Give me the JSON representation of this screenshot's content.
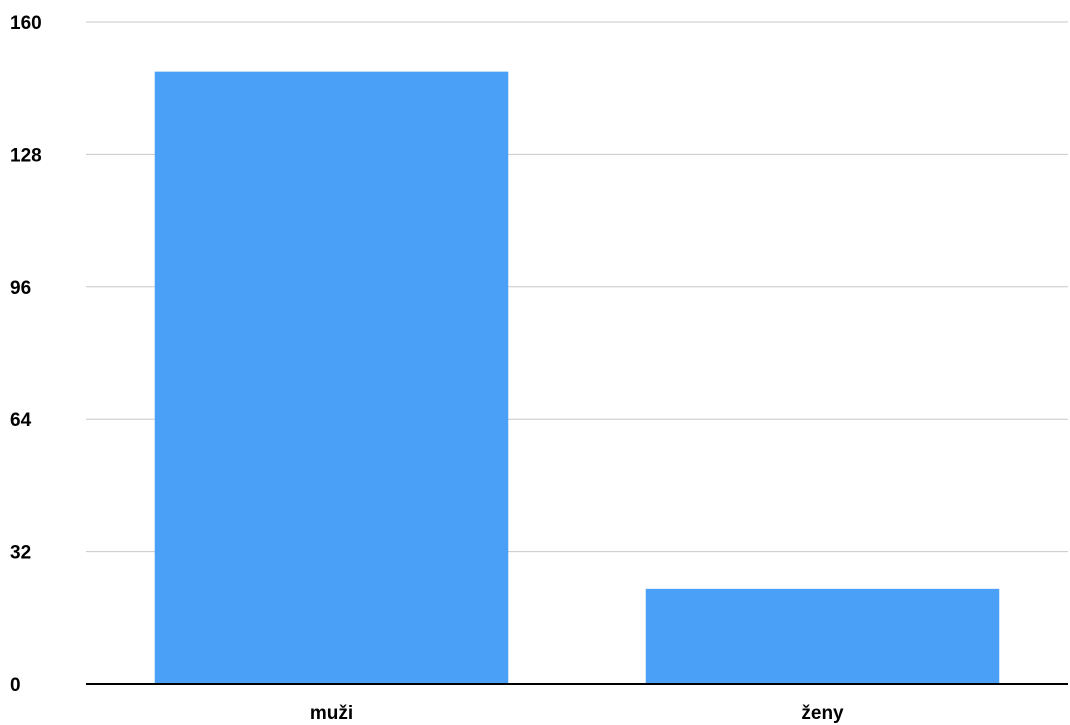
{
  "chart_data": {
    "type": "bar",
    "categories": [
      "muži",
      "ženy"
    ],
    "values": [
      148,
      23
    ],
    "ylim": [
      0,
      160
    ],
    "yticks": [
      0,
      32,
      64,
      96,
      128,
      160
    ],
    "grid": true,
    "legend": "none",
    "colors": {
      "bar": "#4a9ff6",
      "grid": "#c8c8c8",
      "axis": "#000000"
    }
  }
}
